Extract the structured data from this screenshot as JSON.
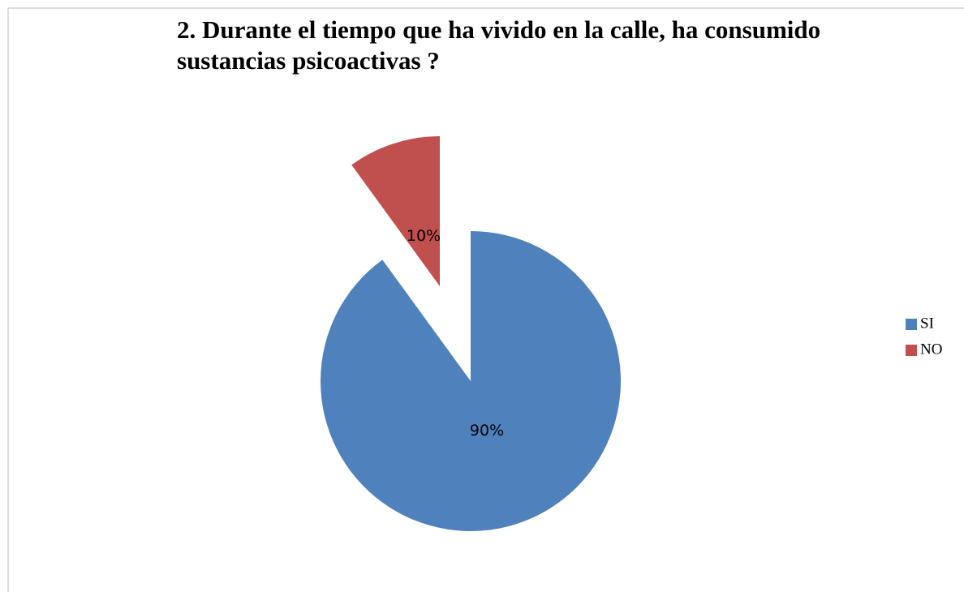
{
  "chart_data": {
    "type": "pie",
    "title": "2. Durante el tiempo que ha vivido en la calle, ha consumido sustancias psicoactivas ?",
    "categories": [
      "SI",
      "NO"
    ],
    "values": [
      90,
      10
    ],
    "value_labels": [
      "90%",
      "10%"
    ],
    "colors": [
      "#4f81bd",
      "#c0504d"
    ],
    "exploded": [
      "NO"
    ],
    "legend": "right"
  }
}
